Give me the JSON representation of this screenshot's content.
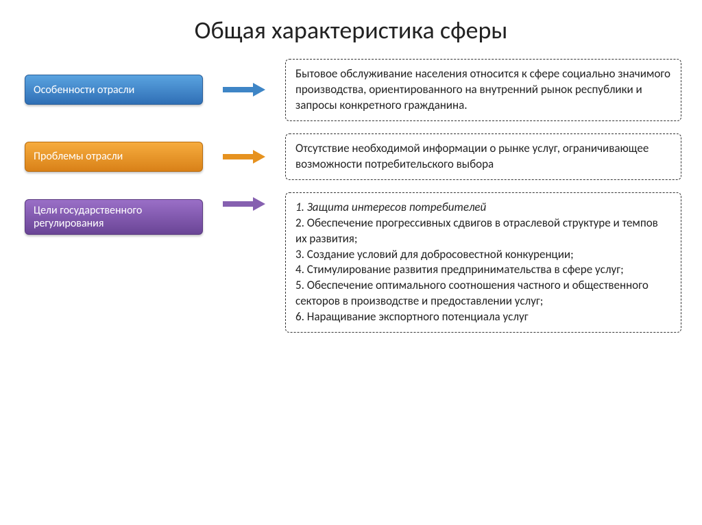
{
  "title": "Общая характеристика сферы",
  "colors": {
    "label_bg_1": "linear-gradient(to bottom, #5aa3e0, #2f6fb5)",
    "label_border_1": "#2a5e99",
    "arrow_1": "#3e85c6",
    "label_bg_2": "linear-gradient(to bottom, #f6ac3e, #d98118)",
    "label_border_2": "#b76c10",
    "arrow_2": "#e6921f",
    "label_bg_3": "linear-gradient(to bottom, #9a6fc7, #6a4596)",
    "label_border_3": "#5a3a80",
    "arrow_3": "#8660b0",
    "desc_border": "#333333",
    "title_color": "#222222"
  },
  "sections": [
    {
      "label": "Особенности отрасли",
      "desc": "Бытовое обслуживание населения относится к сфере социально значимого производства, ориентированного на внутренний рынок республики и запросы конкретного гражданина."
    },
    {
      "label": "Проблемы  отрасли",
      "desc": "Отсутствие необходимой информации о рынке услуг, ограничивающее возможности потребительского выбора"
    },
    {
      "label": "Цели государственного регулирования",
      "desc_list": [
        "1. Защита интересов потребителей",
        "2. Обеспечение прогрессивных сдвигов в отраслевой структуре и темпов их развития;",
        "3.  Создание условий для добросовестной конкуренции;",
        "4. Стимулирование развития предпринимательства в сфере услуг;",
        "5.  Обеспечение оптимального соотношения частного и общественного секторов в производстве и предоставлении услуг;",
        "6.  Наращивание экспортного потенциала услуг"
      ]
    }
  ]
}
